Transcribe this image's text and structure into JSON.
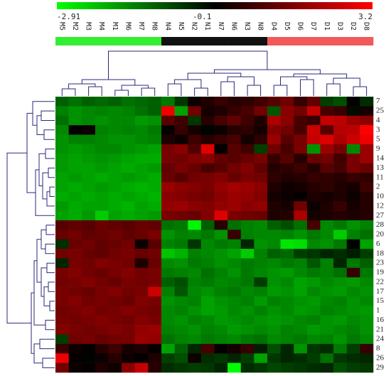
{
  "chart_data": {
    "type": "heatmap",
    "x": [
      "M5",
      "M2",
      "M3",
      "M4",
      "M1",
      "M6",
      "M7",
      "M8",
      "N4",
      "N5",
      "N2",
      "N1",
      "N7",
      "N6",
      "N3",
      "N8",
      "D4",
      "D5",
      "D6",
      "D7",
      "D1",
      "D3",
      "D2",
      "D8"
    ],
    "y": [
      "7",
      "25",
      "4",
      "3",
      "5",
      "9",
      "14",
      "13",
      "11",
      "2",
      "10",
      "12",
      "27",
      "28",
      "20",
      "6",
      "18",
      "23",
      "19",
      "22",
      "17",
      "15",
      "1",
      "16",
      "21",
      "24",
      "8",
      "26",
      "29"
    ],
    "z": [
      [
        -1.0,
        -1.2,
        -1.0,
        -1.1,
        -1.0,
        -1.2,
        -1.1,
        -1.0,
        -1.3,
        -0.5,
        0.3,
        0.5,
        0.8,
        0.6,
        0.7,
        0.9,
        1.2,
        1.5,
        0.8,
        1.3,
        -0.6,
        -0.8,
        0.2,
        -0.4
      ],
      [
        -1.4,
        -1.6,
        -1.5,
        -1.4,
        -1.5,
        -1.4,
        -1.2,
        -1.0,
        3.0,
        -1.8,
        1.5,
        0.4,
        0.5,
        0.8,
        1.0,
        1.5,
        -0.9,
        1.8,
        1.5,
        2.5,
        1.0,
        0.8,
        0.0,
        0.4
      ],
      [
        -1.2,
        -1.6,
        -1.5,
        -1.6,
        -1.5,
        -1.5,
        -1.7,
        -1.6,
        1.2,
        0.9,
        -0.5,
        0.6,
        1.0,
        1.3,
        0.9,
        0.5,
        2.2,
        1.8,
        1.0,
        0.8,
        2.5,
        2.4,
        2.0,
        1.8
      ],
      [
        -1.5,
        0.2,
        0.3,
        -1.4,
        -1.5,
        -1.4,
        -1.5,
        -1.3,
        0.2,
        0.8,
        0.4,
        0.1,
        0.3,
        0.6,
        0.7,
        0.4,
        1.7,
        1.5,
        1.0,
        2.6,
        1.2,
        2.3,
        2.4,
        3.2
      ],
      [
        -1.6,
        -1.4,
        -1.4,
        -1.5,
        -1.6,
        -1.6,
        -1.5,
        -1.4,
        0.5,
        0.3,
        0.9,
        0.6,
        0.8,
        1.0,
        0.4,
        0.7,
        2.0,
        1.2,
        1.6,
        2.5,
        2.8,
        2.2,
        2.6,
        3.0
      ],
      [
        -1.6,
        -1.7,
        -1.6,
        -1.5,
        -1.5,
        -1.6,
        -1.7,
        -1.8,
        1.6,
        1.8,
        1.1,
        2.8,
        0.2,
        1.2,
        0.9,
        -0.6,
        1.5,
        1.0,
        1.6,
        -1.6,
        2.0,
        1.6,
        -1.5,
        2.0
      ],
      [
        -1.7,
        -1.8,
        -1.7,
        -1.6,
        -1.7,
        -1.8,
        -1.9,
        -1.9,
        1.6,
        1.5,
        1.7,
        1.8,
        1.3,
        1.2,
        1.4,
        1.6,
        0.8,
        1.2,
        0.6,
        1.4,
        1.5,
        0.9,
        1.6,
        2.0
      ],
      [
        -1.7,
        -1.8,
        -1.8,
        -1.7,
        -1.8,
        -1.9,
        -1.8,
        -1.7,
        1.3,
        1.6,
        1.4,
        1.0,
        1.2,
        1.5,
        1.7,
        1.3,
        0.6,
        0.7,
        0.9,
        0.6,
        1.2,
        1.0,
        1.6,
        1.4
      ],
      [
        -1.8,
        -1.7,
        -1.8,
        -1.9,
        -1.8,
        -1.7,
        -1.8,
        -1.9,
        1.4,
        1.2,
        1.5,
        1.6,
        1.7,
        1.4,
        1.6,
        1.5,
        0.7,
        0.5,
        0.6,
        0.8,
        0.7,
        0.6,
        0.8,
        0.7
      ],
      [
        -1.8,
        -1.9,
        -1.8,
        -1.7,
        -1.8,
        -1.9,
        -2.0,
        -1.9,
        2.0,
        1.8,
        1.7,
        1.6,
        1.9,
        2.1,
        2.0,
        1.8,
        0.5,
        0.3,
        0.4,
        0.6,
        0.7,
        0.5,
        0.4,
        0.9
      ],
      [
        -1.9,
        -1.8,
        -1.9,
        -1.8,
        -1.9,
        -1.8,
        -1.9,
        -2.0,
        1.8,
        1.7,
        1.6,
        1.5,
        1.8,
        2.0,
        1.9,
        1.7,
        0.4,
        0.3,
        0.2,
        0.5,
        0.4,
        0.5,
        0.3,
        0.6
      ],
      [
        -1.7,
        -1.9,
        -1.8,
        -1.8,
        -1.9,
        -2.0,
        -1.8,
        -1.9,
        1.9,
        2.0,
        1.8,
        1.7,
        1.9,
        2.0,
        1.8,
        1.9,
        0.5,
        0.4,
        1.5,
        0.3,
        0.5,
        0.8,
        0.4,
        0.6
      ],
      [
        -1.8,
        -1.9,
        -1.7,
        -2.3,
        -1.8,
        -1.9,
        -1.8,
        -1.7,
        1.6,
        1.5,
        1.4,
        1.7,
        2.8,
        1.6,
        1.5,
        1.4,
        0.5,
        0.6,
        2.2,
        0.4,
        0.5,
        0.6,
        0.5,
        0.6
      ],
      [
        1.2,
        1.3,
        1.2,
        1.4,
        1.3,
        1.2,
        1.4,
        1.3,
        -1.2,
        -1.3,
        -2.8,
        -1.0,
        0.6,
        -1.2,
        -1.4,
        -1.5,
        -1.0,
        -0.8,
        -1.2,
        1.0,
        -1.5,
        -1.3,
        -1.6,
        -1.4
      ],
      [
        1.4,
        1.5,
        1.3,
        1.4,
        1.5,
        1.3,
        1.4,
        1.6,
        -1.6,
        -1.4,
        -1.5,
        -1.3,
        -1.6,
        0.8,
        -1.4,
        -1.5,
        -1.5,
        -1.4,
        -1.6,
        -1.3,
        -1.5,
        -2.3,
        -1.4,
        -1.2
      ],
      [
        -0.4,
        1.4,
        1.5,
        1.3,
        1.4,
        1.5,
        0.3,
        1.2,
        -1.4,
        -1.3,
        -0.5,
        -1.5,
        -1.3,
        -1.4,
        -0.3,
        -1.6,
        -1.5,
        -2.6,
        -2.5,
        -1.5,
        -1.6,
        -1.3,
        0.1,
        -1.8
      ],
      [
        1.5,
        1.6,
        1.4,
        1.3,
        1.5,
        1.6,
        1.4,
        1.5,
        -2.2,
        -2.0,
        -1.4,
        -1.5,
        -1.6,
        -1.8,
        -2.3,
        -1.4,
        -1.0,
        -1.1,
        -0.6,
        -0.5,
        -0.3,
        -0.4,
        -0.2,
        -0.6
      ],
      [
        -0.3,
        1.6,
        1.5,
        1.7,
        1.6,
        1.5,
        0.5,
        1.4,
        -1.5,
        -1.6,
        -1.3,
        -1.4,
        -1.6,
        -1.5,
        -1.3,
        -1.4,
        -1.5,
        -1.3,
        -1.4,
        -0.9,
        -1.4,
        -0.3,
        -1.3,
        -1.0
      ],
      [
        1.6,
        1.7,
        1.5,
        1.4,
        1.6,
        1.7,
        1.5,
        1.6,
        -1.3,
        -1.4,
        -1.5,
        -1.2,
        -1.4,
        -1.6,
        -1.3,
        -1.5,
        -1.6,
        -1.7,
        -1.5,
        -1.3,
        -1.4,
        -1.2,
        0.8,
        -1.3
      ],
      [
        1.5,
        1.6,
        1.7,
        1.5,
        1.4,
        1.6,
        1.5,
        1.6,
        -1.0,
        -0.8,
        -1.4,
        -1.3,
        -1.5,
        -1.4,
        -1.3,
        -0.6,
        -1.6,
        -1.5,
        -1.8,
        -1.7,
        -1.5,
        -1.6,
        -1.7,
        -1.5
      ],
      [
        1.6,
        1.5,
        1.4,
        1.6,
        1.7,
        1.5,
        1.6,
        2.6,
        -1.4,
        -0.9,
        -1.5,
        -1.6,
        -1.4,
        -1.3,
        -1.5,
        -1.4,
        -1.7,
        -1.6,
        -1.8,
        -1.5,
        -1.6,
        -1.7,
        -1.5,
        -1.6
      ],
      [
        1.6,
        1.7,
        1.5,
        1.6,
        1.5,
        1.4,
        1.7,
        1.6,
        -1.6,
        -1.5,
        -1.4,
        -1.8,
        -1.6,
        -1.5,
        -1.4,
        -1.7,
        -1.4,
        -1.5,
        -1.6,
        -1.7,
        -1.5,
        -1.4,
        -1.6,
        -1.5
      ],
      [
        1.5,
        1.6,
        1.7,
        1.5,
        1.6,
        1.7,
        1.6,
        1.5,
        -1.5,
        -1.4,
        -1.6,
        -1.8,
        -1.7,
        -1.5,
        -1.6,
        -1.4,
        -1.6,
        -1.5,
        -1.7,
        -1.6,
        -1.4,
        -1.5,
        -1.6,
        -1.7
      ],
      [
        1.6,
        1.5,
        1.6,
        1.7,
        1.6,
        1.5,
        1.7,
        1.6,
        -1.5,
        -1.6,
        -1.4,
        -1.5,
        -1.7,
        -1.6,
        -1.5,
        -1.6,
        -1.7,
        -1.6,
        -1.5,
        -1.4,
        -1.6,
        -1.7,
        -1.5,
        -1.6
      ],
      [
        1.7,
        1.6,
        1.5,
        1.6,
        1.7,
        1.6,
        1.9,
        2.0,
        -1.4,
        -1.5,
        -1.6,
        -1.4,
        -1.5,
        -1.7,
        -1.6,
        -1.5,
        -1.6,
        -1.4,
        -1.5,
        -1.7,
        -1.6,
        -1.5,
        -1.4,
        -1.6
      ],
      [
        -0.6,
        1.5,
        1.6,
        1.4,
        1.5,
        1.6,
        2.0,
        1.9,
        -1.2,
        -1.4,
        -1.5,
        -1.3,
        -1.4,
        -1.5,
        -1.3,
        -1.2,
        -1.5,
        -1.4,
        -1.3,
        -1.5,
        -1.4,
        -1.6,
        -1.3,
        -1.5
      ],
      [
        0.8,
        0.3,
        0.2,
        0.6,
        0.9,
        0.4,
        0.5,
        0.2,
        -1.8,
        -1.0,
        -0.3,
        1.0,
        0.2,
        0.4,
        0.8,
        -0.2,
        -0.8,
        -0.3,
        -1.6,
        -0.5,
        -0.4,
        -1.3,
        -0.6,
        0.8
      ],
      [
        3.0,
        0.2,
        0.1,
        0.3,
        0.6,
        0.3,
        0.2,
        0.5,
        -0.6,
        -0.8,
        0.3,
        -0.4,
        -0.5,
        -0.3,
        -0.6,
        -1.8,
        -0.5,
        -0.3,
        -0.4,
        -0.6,
        -1.2,
        -0.5,
        -0.4,
        -0.3
      ],
      [
        1.5,
        0.3,
        0.2,
        0.5,
        0.3,
        1.8,
        2.5,
        0.6,
        -0.4,
        -0.5,
        -0.6,
        -0.5,
        -0.3,
        -2.9,
        -0.4,
        -0.5,
        -0.7,
        -0.6,
        -0.5,
        -0.4,
        -0.3,
        -0.8,
        -0.6,
        -0.5
      ]
    ],
    "zlim": [
      -2.91,
      3.2
    ],
    "zticks": [
      -2.91,
      -0.1,
      3.2
    ],
    "colorscale": [
      "#00ff00",
      "#000000",
      "#ff0000"
    ],
    "column_colors": [
      "#33ee33",
      "#33ee33",
      "#33ee33",
      "#33ee33",
      "#33ee33",
      "#33ee33",
      "#33ee33",
      "#33ee33",
      "#111111",
      "#111111",
      "#111111",
      "#111111",
      "#111111",
      "#111111",
      "#111111",
      "#111111",
      "#f05a5a",
      "#f05a5a",
      "#f05a5a",
      "#f05a5a",
      "#f05a5a",
      "#f05a5a",
      "#f05a5a",
      "#f05a5a"
    ]
  }
}
